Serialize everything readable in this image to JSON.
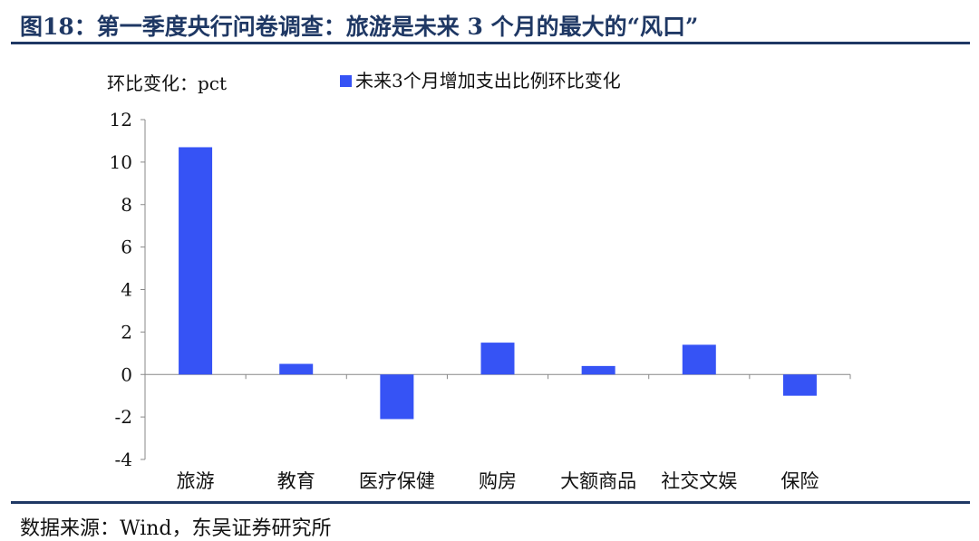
{
  "figure": {
    "title": "图18：第一季度央行问卷调查：旅游是未来 3 个月的最大的“风口”",
    "source": "数据来源：Wind，东吴证券研究所"
  },
  "chart_data": {
    "type": "bar",
    "ylabel": "环比变化：pct",
    "legend": {
      "position": "top",
      "entries": [
        "未来3个月增加支出比例环比变化"
      ]
    },
    "categories": [
      "旅游",
      "教育",
      "医疗保健",
      "购房",
      "大额商品",
      "社交文娱",
      "保险"
    ],
    "series": [
      {
        "name": "未来3个月增加支出比例环比变化",
        "values": [
          10.7,
          0.5,
          -2.1,
          1.5,
          0.4,
          1.4,
          -1.0
        ],
        "color": "#3653f5"
      }
    ],
    "ylim": [
      -4,
      12
    ],
    "yticks": [
      -4,
      -2,
      0,
      2,
      4,
      6,
      8,
      10,
      12
    ],
    "grid": false
  }
}
